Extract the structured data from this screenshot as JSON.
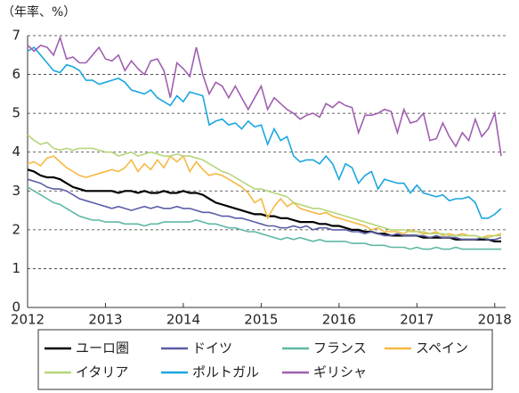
{
  "chart_data": {
    "type": "line",
    "y_unit_label": "（年率、%）",
    "x": [
      2012,
      2012.083,
      2012.167,
      2012.25,
      2012.333,
      2012.417,
      2012.5,
      2012.583,
      2012.667,
      2012.75,
      2012.833,
      2012.917,
      2013,
      2013.083,
      2013.167,
      2013.25,
      2013.333,
      2013.417,
      2013.5,
      2013.583,
      2013.667,
      2013.75,
      2013.833,
      2013.917,
      2014,
      2014.083,
      2014.167,
      2014.25,
      2014.333,
      2014.417,
      2014.5,
      2014.583,
      2014.667,
      2014.75,
      2014.833,
      2014.917,
      2015,
      2015.083,
      2015.167,
      2015.25,
      2015.333,
      2015.417,
      2015.5,
      2015.583,
      2015.667,
      2015.75,
      2015.833,
      2015.917,
      2016,
      2016.083,
      2016.167,
      2016.25,
      2016.333,
      2016.417,
      2016.5,
      2016.583,
      2016.667,
      2016.75,
      2016.833,
      2016.917,
      2017,
      2017.083,
      2017.167,
      2017.25,
      2017.333,
      2017.417,
      2017.5,
      2017.583,
      2017.667,
      2017.75,
      2017.833,
      2017.917,
      2018,
      2018.083
    ],
    "xlim": [
      2012,
      2018.14
    ],
    "xticks": [
      2012,
      2013,
      2014,
      2015,
      2016,
      2017,
      2018
    ],
    "ylim": [
      0,
      7
    ],
    "yticks": [
      0,
      1,
      2,
      3,
      4,
      5,
      6,
      7
    ],
    "grid": true,
    "series": [
      {
        "name": "ユーロ圏",
        "color": "#000000",
        "values": [
          3.55,
          3.5,
          3.4,
          3.35,
          3.35,
          3.3,
          3.2,
          3.1,
          3.05,
          3.0,
          3.0,
          3.0,
          3.0,
          3.0,
          2.95,
          3.0,
          3.0,
          2.95,
          3.0,
          2.95,
          2.95,
          3.0,
          2.95,
          2.95,
          3.0,
          2.95,
          2.95,
          2.9,
          2.8,
          2.7,
          2.65,
          2.6,
          2.55,
          2.5,
          2.45,
          2.4,
          2.4,
          2.35,
          2.35,
          2.3,
          2.3,
          2.25,
          2.2,
          2.2,
          2.2,
          2.15,
          2.15,
          2.1,
          2.1,
          2.05,
          2.0,
          2.0,
          1.95,
          1.95,
          1.9,
          1.9,
          1.85,
          1.85,
          1.85,
          1.85,
          1.85,
          1.8,
          1.8,
          1.8,
          1.8,
          1.8,
          1.75,
          1.75,
          1.75,
          1.75,
          1.75,
          1.75,
          1.7,
          1.7
        ]
      },
      {
        "name": "ドイツ",
        "color": "#5b5ea6",
        "values": [
          3.3,
          3.25,
          3.2,
          3.1,
          3.05,
          3.05,
          3.0,
          2.9,
          2.8,
          2.75,
          2.7,
          2.65,
          2.6,
          2.55,
          2.6,
          2.55,
          2.5,
          2.55,
          2.6,
          2.55,
          2.6,
          2.55,
          2.55,
          2.6,
          2.55,
          2.55,
          2.5,
          2.45,
          2.45,
          2.4,
          2.35,
          2.35,
          2.3,
          2.3,
          2.25,
          2.2,
          2.15,
          2.1,
          2.1,
          2.05,
          2.05,
          2.1,
          2.05,
          2.1,
          2.0,
          2.05,
          2.05,
          2.0,
          2.0,
          2.0,
          1.95,
          1.95,
          1.9,
          1.95,
          1.9,
          1.85,
          1.85,
          1.9,
          1.85,
          1.85,
          1.85,
          1.85,
          1.8,
          1.85,
          1.8,
          1.8,
          1.8,
          1.75,
          1.75,
          1.75,
          1.8,
          1.75,
          1.75,
          1.8
        ]
      },
      {
        "name": "フランス",
        "color": "#5fb8a5",
        "values": [
          3.1,
          3.0,
          2.9,
          2.8,
          2.7,
          2.65,
          2.55,
          2.45,
          2.35,
          2.3,
          2.25,
          2.25,
          2.2,
          2.2,
          2.2,
          2.15,
          2.15,
          2.15,
          2.1,
          2.15,
          2.15,
          2.2,
          2.2,
          2.2,
          2.2,
          2.2,
          2.25,
          2.2,
          2.15,
          2.15,
          2.1,
          2.05,
          2.05,
          2.0,
          1.95,
          1.95,
          1.9,
          1.85,
          1.8,
          1.75,
          1.8,
          1.75,
          1.8,
          1.75,
          1.7,
          1.75,
          1.7,
          1.7,
          1.7,
          1.7,
          1.65,
          1.65,
          1.65,
          1.6,
          1.6,
          1.6,
          1.55,
          1.55,
          1.55,
          1.5,
          1.55,
          1.5,
          1.5,
          1.55,
          1.5,
          1.5,
          1.55,
          1.5,
          1.5,
          1.5,
          1.5,
          1.5,
          1.5,
          1.5
        ]
      },
      {
        "name": "スペイン",
        "color": "#f5b942",
        "values": [
          3.7,
          3.75,
          3.65,
          3.85,
          3.9,
          3.75,
          3.6,
          3.5,
          3.4,
          3.35,
          3.4,
          3.45,
          3.5,
          3.55,
          3.5,
          3.6,
          3.8,
          3.5,
          3.7,
          3.55,
          3.8,
          3.6,
          3.9,
          3.75,
          3.9,
          3.5,
          3.75,
          3.55,
          3.4,
          3.45,
          3.4,
          3.3,
          3.2,
          3.1,
          2.95,
          2.7,
          2.8,
          2.3,
          2.6,
          2.8,
          2.6,
          2.7,
          2.55,
          2.5,
          2.45,
          2.4,
          2.45,
          2.35,
          2.3,
          2.25,
          2.2,
          2.15,
          2.1,
          2.0,
          2.05,
          1.95,
          1.95,
          1.95,
          1.9,
          2.0,
          1.95,
          1.9,
          1.9,
          1.95,
          1.85,
          1.9,
          1.85,
          1.9,
          1.85,
          1.85,
          1.8,
          1.85,
          1.85,
          1.9
        ]
      },
      {
        "name": "イタリア",
        "color": "#b5d67a",
        "values": [
          4.45,
          4.3,
          4.2,
          4.25,
          4.1,
          4.05,
          4.1,
          4.05,
          4.1,
          4.1,
          4.1,
          4.05,
          4.0,
          4.0,
          3.9,
          3.95,
          4.0,
          3.9,
          3.95,
          4.0,
          3.95,
          3.9,
          3.9,
          3.95,
          3.9,
          3.9,
          3.85,
          3.8,
          3.7,
          3.6,
          3.5,
          3.45,
          3.35,
          3.25,
          3.15,
          3.05,
          3.05,
          3.0,
          2.95,
          2.9,
          2.85,
          2.7,
          2.65,
          2.6,
          2.55,
          2.55,
          2.5,
          2.45,
          2.4,
          2.35,
          2.3,
          2.25,
          2.2,
          2.15,
          2.1,
          2.05,
          2.0,
          2.0,
          2.0,
          1.95,
          1.95,
          1.95,
          1.9,
          1.9,
          1.9,
          1.85,
          1.85,
          1.85,
          1.85,
          1.85,
          1.8,
          1.8,
          1.85,
          1.85
        ]
      },
      {
        "name": "ポルトガル",
        "color": "#1aa7e0",
        "values": [
          6.6,
          6.7,
          6.5,
          6.3,
          6.1,
          6.05,
          6.25,
          6.2,
          6.1,
          5.85,
          5.85,
          5.75,
          5.8,
          5.85,
          5.9,
          5.8,
          5.6,
          5.55,
          5.5,
          5.6,
          5.4,
          5.3,
          5.2,
          5.45,
          5.3,
          5.55,
          5.5,
          5.45,
          4.7,
          4.8,
          4.85,
          4.7,
          4.75,
          4.6,
          4.8,
          4.65,
          4.7,
          4.2,
          4.6,
          4.3,
          4.4,
          3.9,
          3.75,
          3.8,
          3.8,
          3.7,
          3.9,
          3.7,
          3.3,
          3.7,
          3.6,
          3.2,
          3.4,
          3.5,
          3.05,
          3.3,
          3.25,
          3.2,
          3.2,
          2.95,
          3.15,
          2.95,
          2.9,
          2.85,
          2.9,
          2.75,
          2.8,
          2.8,
          2.85,
          2.7,
          2.3,
          2.3,
          2.4,
          2.55
        ]
      },
      {
        "name": "ギリシャ",
        "color": "#a05fb0",
        "values": [
          6.75,
          6.6,
          6.75,
          6.7,
          6.5,
          6.95,
          6.4,
          6.45,
          6.3,
          6.3,
          6.5,
          6.7,
          6.4,
          6.35,
          6.5,
          6.1,
          6.35,
          6.15,
          6.0,
          6.35,
          6.4,
          6.1,
          5.4,
          6.3,
          6.15,
          5.95,
          6.7,
          6.0,
          5.5,
          5.8,
          5.7,
          5.4,
          5.7,
          5.4,
          5.1,
          5.4,
          5.7,
          5.1,
          5.4,
          5.25,
          5.1,
          5.0,
          4.85,
          4.95,
          5.0,
          4.9,
          5.25,
          5.15,
          5.3,
          5.2,
          5.15,
          4.5,
          4.95,
          4.95,
          5.0,
          5.1,
          5.05,
          4.5,
          5.1,
          4.75,
          4.8,
          5.0,
          4.3,
          4.35,
          4.75,
          4.4,
          4.15,
          4.5,
          4.3,
          4.85,
          4.4,
          4.6,
          5.0,
          3.9
        ]
      }
    ]
  }
}
